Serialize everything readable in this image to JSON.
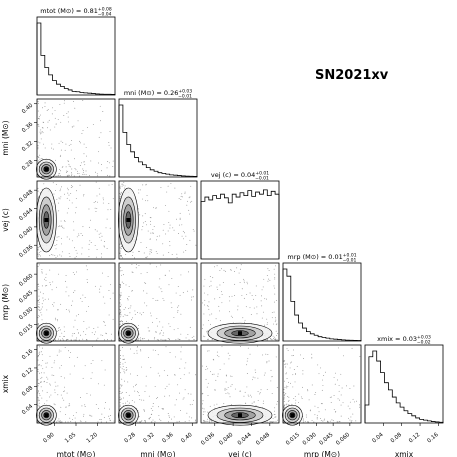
{
  "figure": {
    "object_label": "SN2021xv"
  },
  "chart_data": {
    "type": "corner",
    "parameters": [
      {
        "key": "mtot",
        "axis_label": "mtot (M⊙)",
        "title": "mtot (M⊙) = 0.81",
        "median": "0.81",
        "err_plus": "+0.08",
        "err_minus": "−0.04",
        "range": [
          0.78,
          1.32
        ],
        "ticks": [
          0.9,
          1.05,
          1.2
        ],
        "tick_labels": [
          "0.90",
          "1.05",
          "1.20"
        ],
        "hist_bins": [
          1.0,
          0.55,
          0.38,
          0.28,
          0.2,
          0.15,
          0.12,
          0.09,
          0.07,
          0.05,
          0.045,
          0.035,
          0.03,
          0.025,
          0.02,
          0.015,
          0.012,
          0.01,
          0.01,
          0.008
        ]
      },
      {
        "key": "mni",
        "axis_label": "mni (M⊙)",
        "title": "mni (M⊙) = 0.26",
        "median": "0.26",
        "err_plus": "+0.03",
        "err_minus": "−0.01",
        "range": [
          0.245,
          0.41
        ],
        "ticks": [
          0.28,
          0.32,
          0.36,
          0.4
        ],
        "tick_labels": [
          "0.28",
          "0.32",
          "0.36",
          "0.40"
        ],
        "hist_bins": [
          1.0,
          0.62,
          0.45,
          0.35,
          0.27,
          0.21,
          0.17,
          0.13,
          0.1,
          0.08,
          0.06,
          0.05,
          0.04,
          0.03,
          0.025,
          0.02,
          0.015,
          0.012,
          0.01,
          0.008
        ]
      },
      {
        "key": "vej",
        "axis_label": "vej (c)",
        "title": "vej (c) = 0.04",
        "median": "0.04",
        "err_plus": "+0.01",
        "err_minus": "−0.01",
        "range": [
          0.033,
          0.05
        ],
        "ticks": [
          0.036,
          0.04,
          0.044,
          0.048
        ],
        "tick_labels": [
          "0.036",
          "0.040",
          "0.044",
          "0.048"
        ],
        "hist_bins": [
          0.8,
          0.86,
          0.82,
          0.88,
          0.84,
          0.9,
          0.85,
          0.78,
          0.9,
          0.86,
          0.92,
          0.88,
          0.95,
          0.87,
          0.93,
          0.9,
          0.96,
          0.88,
          0.94,
          0.9
        ]
      },
      {
        "key": "mrp",
        "axis_label": "mrp (M⊙)",
        "title": "mrp (M⊙) = 0.01",
        "median": "0.01",
        "err_plus": "+0.01",
        "err_minus": "−0.01",
        "range": [
          0.0,
          0.07
        ],
        "ticks": [
          0.015,
          0.03,
          0.045,
          0.06
        ],
        "tick_labels": [
          "0.015",
          "0.030",
          "0.045",
          "0.060"
        ],
        "hist_bins": [
          1.0,
          0.9,
          0.55,
          0.36,
          0.25,
          0.18,
          0.13,
          0.1,
          0.08,
          0.06,
          0.05,
          0.04,
          0.03,
          0.025,
          0.02,
          0.016,
          0.012,
          0.01,
          0.008,
          0.006
        ]
      },
      {
        "key": "xmix",
        "axis_label": "xmix",
        "title": "xmix = 0.03",
        "median": "0.03",
        "err_plus": "+0.03",
        "err_minus": "−0.02",
        "range": [
          0.0,
          0.17
        ],
        "ticks": [
          0.04,
          0.08,
          0.12,
          0.16
        ],
        "tick_labels": [
          "0.04",
          "0.08",
          "0.12",
          "0.16"
        ],
        "hist_bins": [
          0.25,
          0.92,
          1.0,
          0.86,
          0.7,
          0.56,
          0.46,
          0.36,
          0.28,
          0.22,
          0.17,
          0.13,
          0.1,
          0.07,
          0.05,
          0.04,
          0.03,
          0.02,
          0.015,
          0.01
        ]
      }
    ]
  }
}
